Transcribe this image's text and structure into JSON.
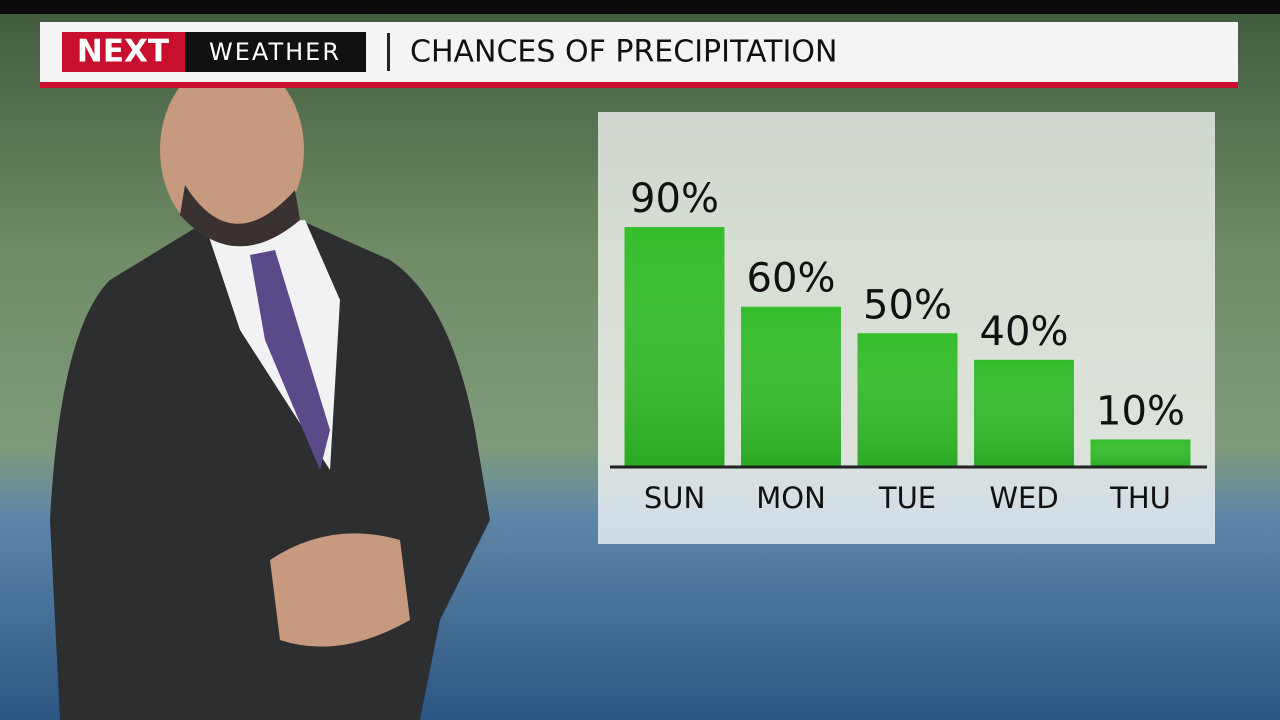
{
  "header": {
    "logo": "NEXT",
    "brand": "WEATHER"
  },
  "chart_data": {
    "type": "bar",
    "title": "CHANCES OF PRECIPITATION",
    "categories": [
      "SUN",
      "MON",
      "TUE",
      "WED",
      "THU"
    ],
    "values": [
      90,
      60,
      50,
      40,
      10
    ],
    "value_labels": [
      "90%",
      "60%",
      "50%",
      "40%",
      "10%"
    ],
    "color": "#35bd2c"
  }
}
